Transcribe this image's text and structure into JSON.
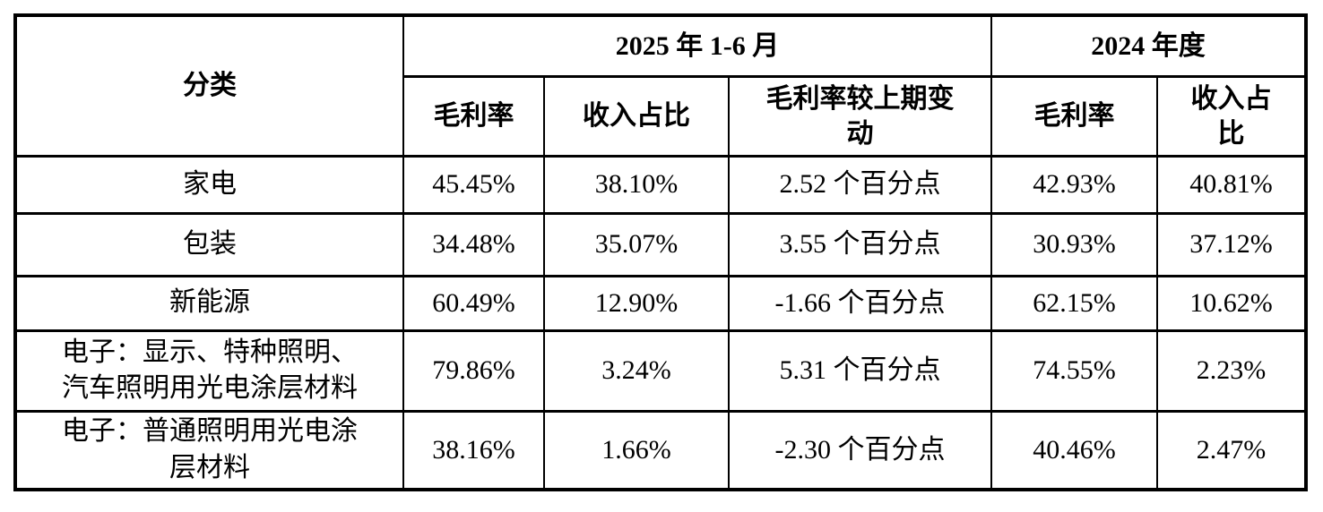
{
  "colors": {
    "background": "#ffffff",
    "border": "#000000",
    "text": "#000000"
  },
  "table": {
    "header": {
      "category_label": "分类",
      "period_2025_label": "2025 年 1-6 月",
      "period_2024_label": "2024 年度",
      "columns_2025": {
        "gross_margin": "毛利率",
        "revenue_share": "收入占比",
        "margin_change": "毛利率较上期变\n动"
      },
      "columns_2024": {
        "gross_margin": "毛利率",
        "revenue_share": "收入占\n比"
      }
    },
    "rows": [
      {
        "category": "家电",
        "margin_2025": "45.45%",
        "share_2025": "38.10%",
        "change_2025": "2.52 个百分点",
        "margin_2024": "42.93%",
        "share_2024": "40.81%"
      },
      {
        "category": "包装",
        "margin_2025": "34.48%",
        "share_2025": "35.07%",
        "change_2025": "3.55 个百分点",
        "margin_2024": "30.93%",
        "share_2024": "37.12%"
      },
      {
        "category": "新能源",
        "margin_2025": "60.49%",
        "share_2025": "12.90%",
        "change_2025": "-1.66 个百分点",
        "margin_2024": "62.15%",
        "share_2024": "10.62%"
      },
      {
        "category": "电子：显示、特种照明、\n汽车照明用光电涂层材料",
        "margin_2025": "79.86%",
        "share_2025": "3.24%",
        "change_2025": "5.31 个百分点",
        "margin_2024": "74.55%",
        "share_2024": "2.23%"
      },
      {
        "category": "电子：普通照明用光电涂\n层材料",
        "margin_2025": "38.16%",
        "share_2025": "1.66%",
        "change_2025": "-2.30 个百分点",
        "margin_2024": "40.46%",
        "share_2024": "2.47%"
      }
    ]
  }
}
